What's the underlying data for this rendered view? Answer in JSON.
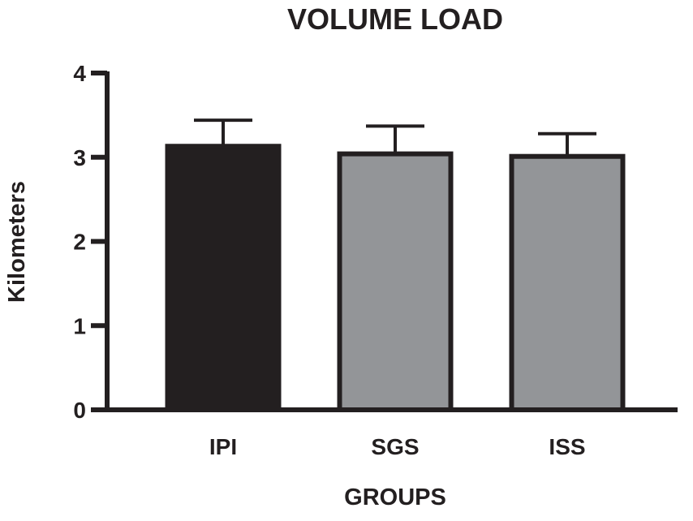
{
  "chart_data": {
    "type": "bar",
    "title": "VOLUME LOAD",
    "xlabel": "GROUPS",
    "ylabel": "Kilometers",
    "categories": [
      "IPI",
      "SGS",
      "ISS"
    ],
    "values": [
      3.13,
      3.04,
      3.01
    ],
    "error_upper": [
      0.31,
      0.33,
      0.27
    ],
    "bar_colors": [
      "#231f20",
      "#939598",
      "#939598"
    ],
    "ylim": [
      0,
      4
    ],
    "yticks": [
      "0",
      "1",
      "2",
      "3",
      "4"
    ],
    "grid": false,
    "axis_color": "#231f20"
  }
}
